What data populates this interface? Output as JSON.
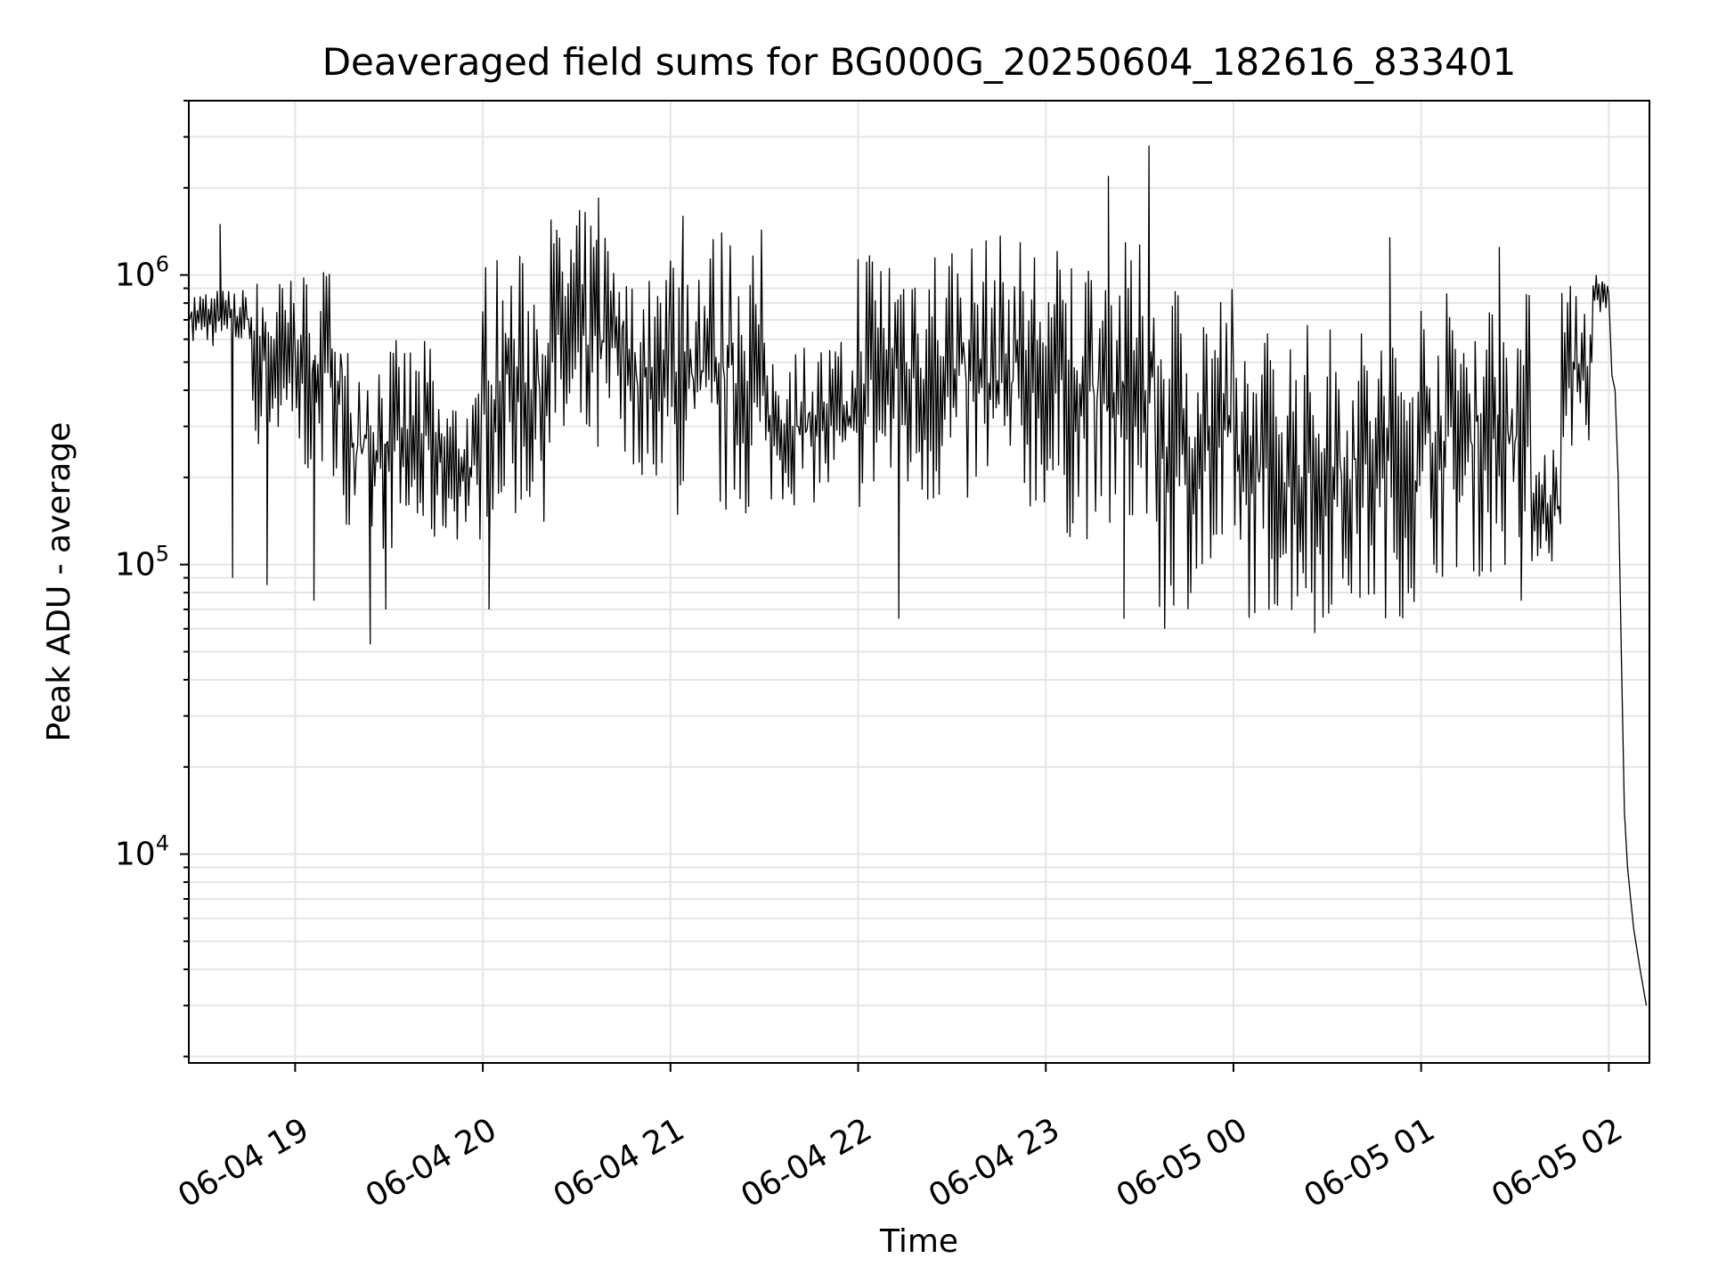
{
  "chart_data": {
    "type": "line",
    "title": "Deaveraged field sums for BG000G_20250604_182616_833401",
    "xlabel": "Time",
    "ylabel": "Peak ADU - average",
    "y_scale": "log",
    "grid": true,
    "line_color": "#000000",
    "grid_color": "#e5e5e5",
    "xlim": [
      "2025-06-04T18:26",
      "2025-06-05T02:13"
    ],
    "ylim": [
      1900,
      4000000
    ],
    "x_ticks": [
      {
        "time": "2025-06-04T19:00",
        "label": "06-04 19"
      },
      {
        "time": "2025-06-04T20:00",
        "label": "06-04 20"
      },
      {
        "time": "2025-06-04T21:00",
        "label": "06-04 21"
      },
      {
        "time": "2025-06-04T22:00",
        "label": "06-04 22"
      },
      {
        "time": "2025-06-04T23:00",
        "label": "06-04 23"
      },
      {
        "time": "2025-06-05T00:00",
        "label": "06-05 00"
      },
      {
        "time": "2025-06-05T01:00",
        "label": "06-05 01"
      },
      {
        "time": "2025-06-05T02:00",
        "label": "06-05 02"
      }
    ],
    "y_ticks": [
      {
        "value": 10000,
        "base": "10",
        "exp": "4"
      },
      {
        "value": 100000,
        "base": "10",
        "exp": "5"
      },
      {
        "value": 1000000,
        "base": "10",
        "exp": "6"
      }
    ],
    "series": [
      {
        "name": "",
        "segments": [
          {
            "start": "2025-06-04T18:26",
            "end": "2025-06-04T18:46",
            "low": 560000,
            "high": 900000
          },
          {
            "start": "2025-06-04T18:46",
            "end": "2025-06-04T19:00",
            "low": 250000,
            "high": 1000000
          },
          {
            "start": "2025-06-04T19:00",
            "end": "2025-06-04T19:15",
            "low": 200000,
            "high": 1100000
          },
          {
            "start": "2025-06-04T19:15",
            "end": "2025-06-04T19:45",
            "low": 110000,
            "high": 600000
          },
          {
            "start": "2025-06-04T19:45",
            "end": "2025-06-04T20:00",
            "low": 120000,
            "high": 400000
          },
          {
            "start": "2025-06-04T20:00",
            "end": "2025-06-04T20:20",
            "low": 140000,
            "high": 1200000
          },
          {
            "start": "2025-06-04T20:20",
            "end": "2025-06-04T20:45",
            "low": 200000,
            "high": 1700000
          },
          {
            "start": "2025-06-04T20:45",
            "end": "2025-06-04T21:00",
            "low": 200000,
            "high": 1000000
          },
          {
            "start": "2025-06-04T21:00",
            "end": "2025-06-04T21:30",
            "low": 140000,
            "high": 1500000
          },
          {
            "start": "2025-06-04T21:30",
            "end": "2025-06-04T22:00",
            "low": 160000,
            "high": 600000
          },
          {
            "start": "2025-06-04T22:00",
            "end": "2025-06-04T23:00",
            "low": 150000,
            "high": 1400000
          },
          {
            "start": "2025-06-04T23:00",
            "end": "2025-06-04T23:35",
            "low": 120000,
            "high": 1300000
          },
          {
            "start": "2025-06-04T23:35",
            "end": "2025-06-05T00:00",
            "low": 70000,
            "high": 1000000
          },
          {
            "start": "2025-06-05T00:00",
            "end": "2025-06-05T01:00",
            "low": 65000,
            "high": 700000
          },
          {
            "start": "2025-06-05T01:00",
            "end": "2025-06-05T01:35",
            "low": 90000,
            "high": 900000
          },
          {
            "start": "2025-06-05T01:35",
            "end": "2025-06-05T01:45",
            "low": 100000,
            "high": 260000
          },
          {
            "start": "2025-06-05T01:45",
            "end": "2025-06-05T01:55",
            "low": 250000,
            "high": 950000
          },
          {
            "start": "2025-06-05T01:55",
            "end": "2025-06-05T02:00",
            "low": 700000,
            "high": 980000
          }
        ],
        "spikes": [
          {
            "time": "2025-06-04T18:36",
            "value": 1500000
          },
          {
            "time": "2025-06-04T18:40",
            "value": 90000
          },
          {
            "time": "2025-06-04T18:51",
            "value": 85000
          },
          {
            "time": "2025-06-04T19:06",
            "value": 75000
          },
          {
            "time": "2025-06-04T19:24",
            "value": 53000
          },
          {
            "time": "2025-06-04T19:29",
            "value": 70000
          },
          {
            "time": "2025-06-04T20:02",
            "value": 70000
          },
          {
            "time": "2025-06-04T20:37",
            "value": 1850000
          },
          {
            "time": "2025-06-04T21:04",
            "value": 1600000
          },
          {
            "time": "2025-06-04T22:13",
            "value": 65000
          },
          {
            "time": "2025-06-04T23:20",
            "value": 2200000
          },
          {
            "time": "2025-06-04T23:25",
            "value": 65000
          },
          {
            "time": "2025-06-04T23:33",
            "value": 2800000
          },
          {
            "time": "2025-06-04T23:38",
            "value": 60000
          },
          {
            "time": "2025-06-05T00:26",
            "value": 58000
          },
          {
            "time": "2025-06-05T00:50",
            "value": 1350000
          },
          {
            "time": "2025-06-05T01:25",
            "value": 1250000
          },
          {
            "time": "2025-06-05T01:32",
            "value": 75000
          }
        ],
        "tail": [
          {
            "time": "2025-06-05T01:56",
            "value": 1000000
          },
          {
            "time": "2025-06-05T01:58",
            "value": 950000
          },
          {
            "time": "2025-06-05T02:00",
            "value": 860000
          },
          {
            "time": "2025-06-05T02:01",
            "value": 450000
          },
          {
            "time": "2025-06-05T02:02",
            "value": 400000
          },
          {
            "time": "2025-06-05T02:03",
            "value": 200000
          },
          {
            "time": "2025-06-05T02:04",
            "value": 50000
          },
          {
            "time": "2025-06-05T02:05",
            "value": 14000
          },
          {
            "time": "2025-06-05T02:06",
            "value": 9000
          },
          {
            "time": "2025-06-05T02:07",
            "value": 7000
          },
          {
            "time": "2025-06-05T02:08",
            "value": 5500
          },
          {
            "time": "2025-06-05T02:10",
            "value": 4000
          },
          {
            "time": "2025-06-05T02:12",
            "value": 3000
          }
        ]
      }
    ]
  }
}
